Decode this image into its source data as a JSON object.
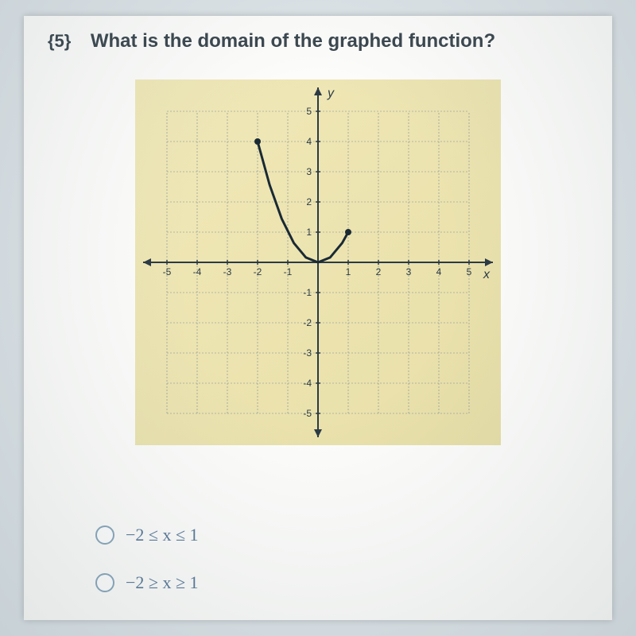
{
  "question": {
    "number": "{5}",
    "text": "What is the domain of the graphed function?"
  },
  "graph": {
    "background": "#ece3ac",
    "grid_color": "#7a8a94",
    "axis_color": "#2b3a44",
    "label_color": "#2b3a44",
    "xlim": [
      -5,
      5
    ],
    "ylim": [
      -5,
      5
    ],
    "tick_step": 1,
    "x_label": "x",
    "y_label": "y",
    "curve": {
      "points": [
        [
          -2,
          4
        ],
        [
          -1.6,
          2.56
        ],
        [
          -1.2,
          1.44
        ],
        [
          -0.8,
          0.64
        ],
        [
          -0.4,
          0.16
        ],
        [
          0,
          0
        ],
        [
          0.4,
          0.16
        ],
        [
          0.8,
          0.64
        ],
        [
          1,
          1
        ]
      ],
      "color": "#1a2a34",
      "width": 3,
      "endpoints": {
        "left": [
          -2,
          4
        ],
        "right": [
          1,
          1
        ],
        "radius": 4,
        "fill": "#1a2a34"
      }
    }
  },
  "answers": [
    {
      "label": "−2 ≤ x ≤ 1"
    },
    {
      "label": "−2 ≥ x ≥ 1"
    }
  ]
}
